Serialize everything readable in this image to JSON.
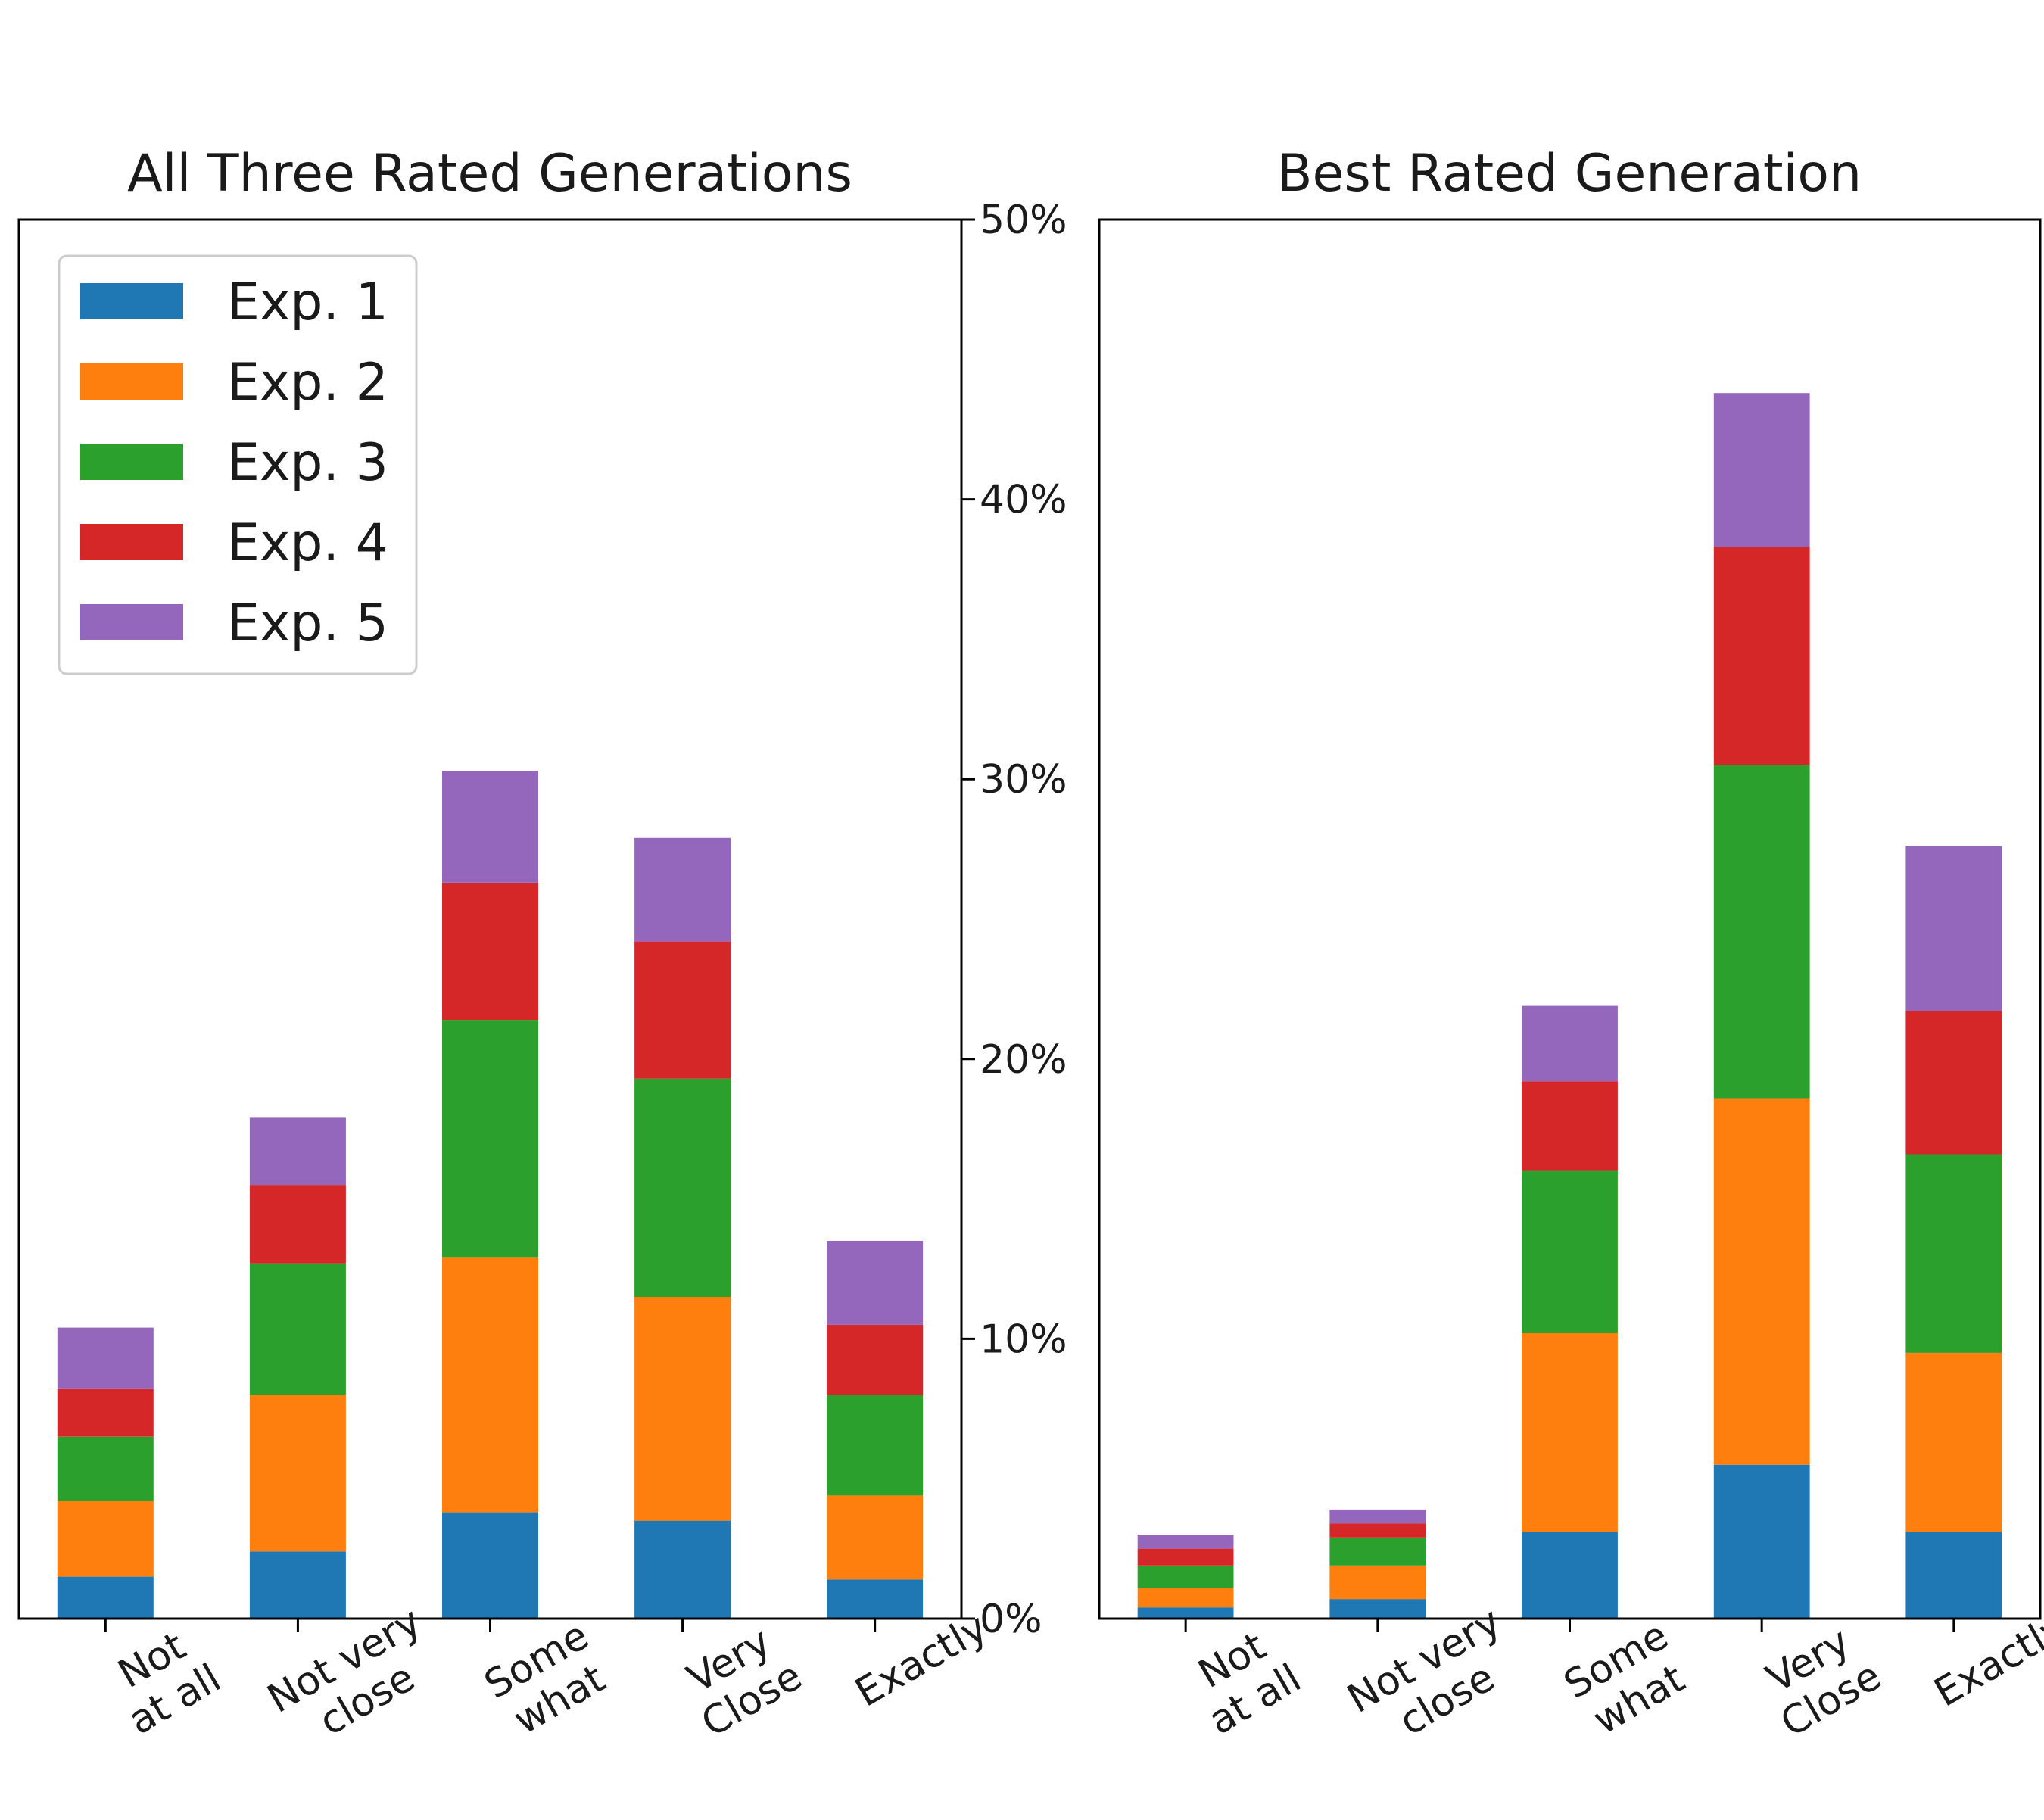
{
  "chart_data": [
    {
      "type": "bar",
      "stacked": true,
      "title": "All Three Rated Generations",
      "categories": [
        [
          "Not",
          "at all"
        ],
        [
          "Not very",
          "close"
        ],
        [
          "Some",
          "what"
        ],
        [
          "Very",
          "Close"
        ],
        [
          "Exactly"
        ]
      ],
      "series": [
        {
          "name": "Exp. 1",
          "color": "#1f77b4",
          "values": [
            1.5,
            2.4,
            3.8,
            3.5,
            1.4
          ]
        },
        {
          "name": "Exp. 2",
          "color": "#ff7f0e",
          "values": [
            2.7,
            5.6,
            9.1,
            8.0,
            3.0
          ]
        },
        {
          "name": "Exp. 3",
          "color": "#2ca02c",
          "values": [
            2.3,
            4.7,
            8.5,
            7.8,
            3.6
          ]
        },
        {
          "name": "Exp. 4",
          "color": "#d62728",
          "values": [
            1.7,
            2.8,
            4.9,
            4.9,
            2.5
          ]
        },
        {
          "name": "Exp. 5",
          "color": "#9467bd",
          "values": [
            2.2,
            2.4,
            4.0,
            3.7,
            3.0
          ]
        }
      ],
      "ylim": [
        0,
        50
      ],
      "yticks": [
        0,
        10,
        20,
        30,
        40,
        50
      ],
      "ytick_labels": [
        "0%",
        "10%",
        "20%",
        "30%",
        "40%",
        "50%"
      ],
      "xlabel": "",
      "ylabel": "",
      "legend": "upper-left",
      "grid": false
    },
    {
      "type": "bar",
      "stacked": true,
      "title": "Best Rated Generation",
      "categories": [
        [
          "Not",
          "at all"
        ],
        [
          "Not very",
          "close"
        ],
        [
          "Some",
          "what"
        ],
        [
          "Very",
          "Close"
        ],
        [
          "Exactly"
        ]
      ],
      "series": [
        {
          "name": "Exp. 1",
          "color": "#1f77b4",
          "values": [
            0.4,
            0.7,
            3.1,
            5.5,
            3.1
          ]
        },
        {
          "name": "Exp. 2",
          "color": "#ff7f0e",
          "values": [
            0.7,
            1.2,
            7.1,
            13.1,
            6.4
          ]
        },
        {
          "name": "Exp. 3",
          "color": "#2ca02c",
          "values": [
            0.8,
            1.0,
            5.8,
            11.9,
            7.1
          ]
        },
        {
          "name": "Exp. 4",
          "color": "#d62728",
          "values": [
            0.6,
            0.5,
            3.2,
            7.8,
            5.1
          ]
        },
        {
          "name": "Exp. 5",
          "color": "#9467bd",
          "values": [
            0.5,
            0.5,
            2.7,
            5.5,
            5.9
          ]
        }
      ],
      "ylim": [
        0,
        50
      ],
      "yticks": [
        0,
        10,
        20,
        30,
        40,
        50
      ],
      "ytick_labels": [
        "0%",
        "10%",
        "20%",
        "30%",
        "40%",
        "50%"
      ],
      "xlabel": "",
      "ylabel": "",
      "grid": false
    }
  ]
}
